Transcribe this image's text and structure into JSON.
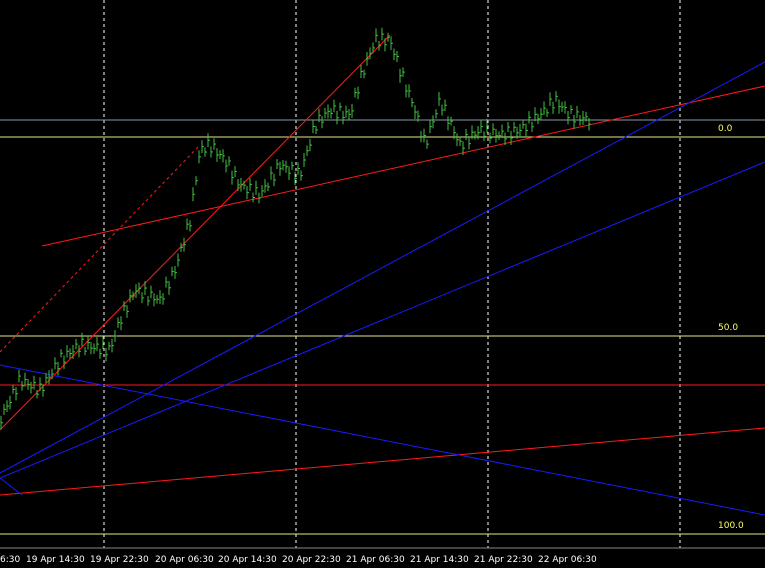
{
  "time_axis": {
    "labels": [
      "6:30",
      "19 Apr 14:30",
      "19 Apr 22:30",
      "20 Apr 06:30",
      "20 Apr 14:30",
      "20 Apr 22:30",
      "21 Apr 06:30",
      "21 Apr 14:30",
      "21 Apr 22:30",
      "22 Apr 06:30"
    ]
  },
  "fibo_levels": [
    {
      "label": "0.0"
    },
    {
      "label": "50.0"
    },
    {
      "label": "100.0"
    }
  ]
}
